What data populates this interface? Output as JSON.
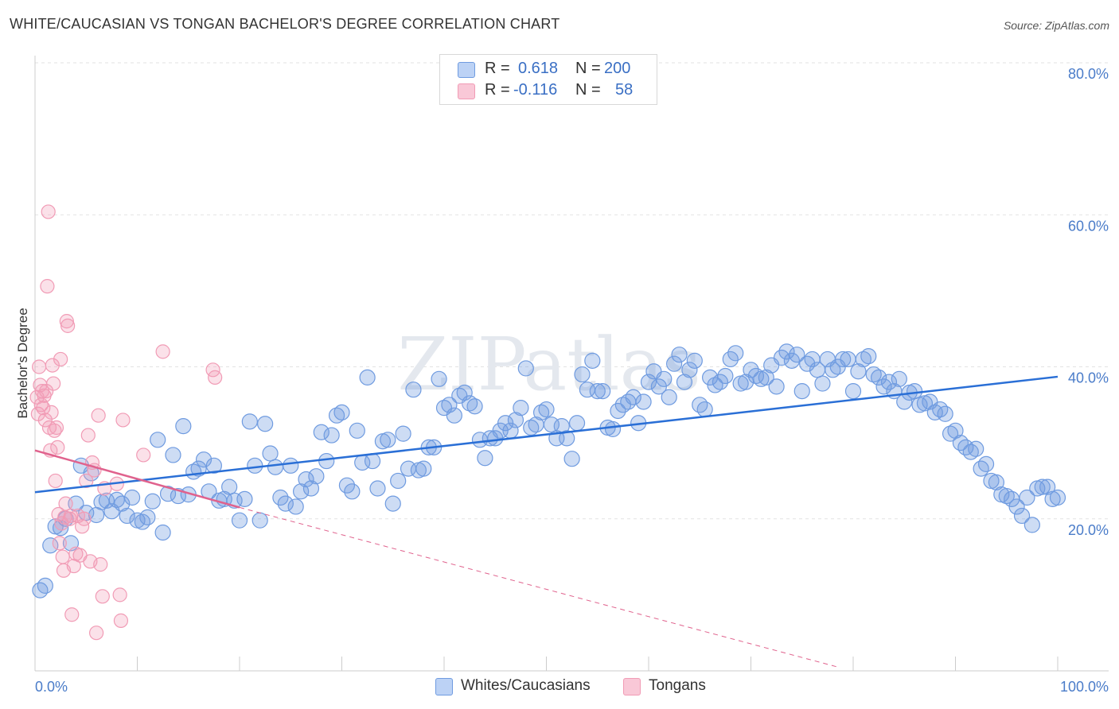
{
  "title": "WHITE/CAUCASIAN VS TONGAN BACHELOR'S DEGREE CORRELATION CHART",
  "source": "Source: ZipAtlas.com",
  "watermark": "ZIPatlas",
  "legend_stats": [
    {
      "r_label": "R =",
      "r_value": "0.618",
      "n_label": "N =",
      "n_value": "200"
    },
    {
      "r_label": "R =",
      "r_value": "-0.116",
      "n_label": "N =",
      "n_value": "58"
    }
  ],
  "bottom_legend": [
    "Whites/Caucasians",
    "Tongans"
  ],
  "colors": {
    "blue": "#6f9be0",
    "blue_line": "#2a6fd6",
    "pink": "#f19bb5",
    "pink_line": "#e0628d",
    "axis_text": "#4a7cc9"
  },
  "chart_data": {
    "type": "scatter",
    "title": "WHITE/CAUCASIAN VS TONGAN BACHELOR'S DEGREE CORRELATION CHART",
    "xlabel": "",
    "ylabel": "Bachelor's Degree",
    "xlim": [
      0,
      100
    ],
    "ylim": [
      0,
      80
    ],
    "x_tick_labels": [
      "0.0%",
      "100.0%"
    ],
    "y_tick_labels": [
      "20.0%",
      "40.0%",
      "60.0%",
      "80.0%"
    ],
    "y_ticks": [
      20,
      40,
      60,
      80
    ],
    "grid": true,
    "series": [
      {
        "name": "Whites/Caucasians",
        "color": "#6f9be0",
        "r": 0.618,
        "n": 200,
        "trend": {
          "x0": 0,
          "y0": 23.5,
          "x1": 100,
          "y1": 38.7
        },
        "points": [
          [
            0.5,
            10.6
          ],
          [
            1,
            11.2
          ],
          [
            1.5,
            16.5
          ],
          [
            2,
            19.0
          ],
          [
            2.5,
            18.8
          ],
          [
            3,
            20.0
          ],
          [
            3.5,
            16.8
          ],
          [
            4,
            22.0
          ],
          [
            4.5,
            27.0
          ],
          [
            5,
            20.8
          ],
          [
            5.5,
            26.0
          ],
          [
            6,
            20.5
          ],
          [
            6.5,
            22.2
          ],
          [
            7,
            22.4
          ],
          [
            7.5,
            21.0
          ],
          [
            8,
            22.5
          ],
          [
            8.5,
            22.0
          ],
          [
            9,
            20.4
          ],
          [
            9.5,
            22.8
          ],
          [
            10,
            19.8
          ],
          [
            10.5,
            19.6
          ],
          [
            11,
            20.2
          ],
          [
            11.5,
            22.3
          ],
          [
            12,
            30.4
          ],
          [
            12.5,
            18.2
          ],
          [
            13,
            23.3
          ],
          [
            13.5,
            28.4
          ],
          [
            14,
            23.0
          ],
          [
            14.5,
            32.2
          ],
          [
            15,
            23.2
          ],
          [
            15.5,
            26.2
          ],
          [
            16,
            26.6
          ],
          [
            16.5,
            27.8
          ],
          [
            17,
            23.6
          ],
          [
            17.5,
            27.0
          ],
          [
            18,
            22.4
          ],
          [
            18.5,
            22.6
          ],
          [
            19,
            24.2
          ],
          [
            19.5,
            22.4
          ],
          [
            20,
            19.8
          ],
          [
            20.5,
            22.6
          ],
          [
            21,
            32.8
          ],
          [
            21.5,
            27.0
          ],
          [
            22,
            19.8
          ],
          [
            22.5,
            32.5
          ],
          [
            23,
            28.6
          ],
          [
            23.5,
            26.8
          ],
          [
            24,
            22.8
          ],
          [
            24.5,
            22.0
          ],
          [
            25,
            27.0
          ],
          [
            25.5,
            21.6
          ],
          [
            26,
            23.6
          ],
          [
            26.5,
            25.2
          ],
          [
            27,
            24.0
          ],
          [
            27.5,
            25.6
          ],
          [
            28,
            31.4
          ],
          [
            28.5,
            27.6
          ],
          [
            29,
            31.0
          ],
          [
            29.5,
            33.6
          ],
          [
            30,
            34.0
          ],
          [
            30.5,
            24.4
          ],
          [
            31,
            23.6
          ],
          [
            31.5,
            31.6
          ],
          [
            32,
            27.4
          ],
          [
            32.5,
            38.6
          ],
          [
            33,
            27.6
          ],
          [
            33.5,
            24.0
          ],
          [
            34,
            30.2
          ],
          [
            34.5,
            30.4
          ],
          [
            35,
            22.0
          ],
          [
            35.5,
            25.0
          ],
          [
            36,
            31.2
          ],
          [
            36.5,
            26.6
          ],
          [
            37,
            37.0
          ],
          [
            37.5,
            26.4
          ],
          [
            38,
            26.6
          ],
          [
            38.5,
            29.4
          ],
          [
            39,
            29.4
          ],
          [
            39.5,
            38.4
          ],
          [
            40,
            34.6
          ],
          [
            40.5,
            35.0
          ],
          [
            41,
            33.6
          ],
          [
            41.5,
            36.2
          ],
          [
            42,
            36.6
          ],
          [
            42.5,
            35.2
          ],
          [
            43,
            34.8
          ],
          [
            43.5,
            30.4
          ],
          [
            44,
            28.0
          ],
          [
            44.5,
            30.6
          ],
          [
            45,
            30.6
          ],
          [
            45.5,
            31.6
          ],
          [
            46,
            32.6
          ],
          [
            46.5,
            31.6
          ],
          [
            47,
            33.0
          ],
          [
            47.5,
            34.6
          ],
          [
            48,
            39.8
          ],
          [
            48.5,
            32.0
          ],
          [
            49,
            32.4
          ],
          [
            49.5,
            34.0
          ],
          [
            50,
            34.4
          ],
          [
            50.5,
            32.4
          ],
          [
            51,
            30.6
          ],
          [
            51.5,
            32.2
          ],
          [
            52,
            30.6
          ],
          [
            52.5,
            27.9
          ],
          [
            53,
            32.6
          ],
          [
            53.5,
            39.0
          ],
          [
            54,
            37.0
          ],
          [
            54.5,
            40.8
          ],
          [
            55,
            36.8
          ],
          [
            55.5,
            36.8
          ],
          [
            56,
            32.0
          ],
          [
            56.5,
            31.8
          ],
          [
            57,
            34.2
          ],
          [
            57.5,
            35.0
          ],
          [
            58,
            35.4
          ],
          [
            58.5,
            36.0
          ],
          [
            59,
            32.6
          ],
          [
            59.5,
            35.4
          ],
          [
            60,
            38.0
          ],
          [
            60.5,
            39.4
          ],
          [
            61,
            37.4
          ],
          [
            61.5,
            38.4
          ],
          [
            62,
            36.0
          ],
          [
            62.5,
            40.4
          ],
          [
            63,
            41.6
          ],
          [
            63.5,
            38.0
          ],
          [
            64,
            39.6
          ],
          [
            64.5,
            40.8
          ],
          [
            65,
            35.0
          ],
          [
            65.5,
            34.4
          ],
          [
            66,
            38.6
          ],
          [
            66.5,
            37.6
          ],
          [
            67,
            38.0
          ],
          [
            67.5,
            38.8
          ],
          [
            68,
            41.0
          ],
          [
            68.5,
            41.8
          ],
          [
            69,
            37.8
          ],
          [
            69.5,
            38.0
          ],
          [
            70,
            39.6
          ],
          [
            70.5,
            38.8
          ],
          [
            71,
            38.4
          ],
          [
            71.5,
            38.6
          ],
          [
            72,
            40.2
          ],
          [
            72.5,
            37.4
          ],
          [
            73,
            41.2
          ],
          [
            73.5,
            42.0
          ],
          [
            74,
            40.8
          ],
          [
            74.5,
            41.6
          ],
          [
            75,
            36.8
          ],
          [
            75.5,
            40.4
          ],
          [
            76,
            41.0
          ],
          [
            76.5,
            39.6
          ],
          [
            77,
            37.8
          ],
          [
            77.5,
            41.0
          ],
          [
            78,
            39.6
          ],
          [
            78.5,
            40.0
          ],
          [
            79,
            41.0
          ],
          [
            79.5,
            41.0
          ],
          [
            80,
            36.8
          ],
          [
            80.5,
            39.4
          ],
          [
            81,
            41.0
          ],
          [
            81.5,
            41.4
          ],
          [
            82,
            39.0
          ],
          [
            82.5,
            38.6
          ],
          [
            83,
            37.4
          ],
          [
            83.5,
            38.0
          ],
          [
            84,
            36.8
          ],
          [
            84.5,
            38.4
          ],
          [
            85,
            35.4
          ],
          [
            85.5,
            36.6
          ],
          [
            86,
            36.8
          ],
          [
            86.5,
            35.0
          ],
          [
            87,
            35.2
          ],
          [
            87.5,
            35.4
          ],
          [
            88,
            34.0
          ],
          [
            88.5,
            34.4
          ],
          [
            89,
            33.8
          ],
          [
            89.5,
            31.2
          ],
          [
            90,
            31.6
          ],
          [
            90.5,
            30.0
          ],
          [
            91,
            29.4
          ],
          [
            91.5,
            28.8
          ],
          [
            92,
            29.2
          ],
          [
            92.5,
            26.6
          ],
          [
            93,
            27.2
          ],
          [
            93.5,
            25.0
          ],
          [
            94,
            24.8
          ],
          [
            94.5,
            23.2
          ],
          [
            95,
            23.0
          ],
          [
            95.5,
            22.6
          ],
          [
            96,
            21.6
          ],
          [
            96.5,
            20.4
          ],
          [
            97,
            22.8
          ],
          [
            97.5,
            19.2
          ],
          [
            98,
            24.0
          ],
          [
            98.5,
            24.2
          ],
          [
            99,
            24.2
          ],
          [
            99.5,
            22.6
          ],
          [
            100,
            22.8
          ]
        ]
      },
      {
        "name": "Tongans",
        "color": "#f19bb5",
        "r": -0.116,
        "n": 58,
        "trend": {
          "x0": 0,
          "y0": 29.0,
          "x1": 20,
          "y1": 21.5
        },
        "trend_dashed": {
          "x0": 20,
          "y0": 21.5,
          "x1": 78.5,
          "y1": 0.5
        },
        "points": [
          [
            0.2,
            36.0
          ],
          [
            0.3,
            33.8
          ],
          [
            0.4,
            40.0
          ],
          [
            0.5,
            37.6
          ],
          [
            0.6,
            35.0
          ],
          [
            0.7,
            36.8
          ],
          [
            0.8,
            34.6
          ],
          [
            0.9,
            36.2
          ],
          [
            1.0,
            33.0
          ],
          [
            1.1,
            36.8
          ],
          [
            1.2,
            50.6
          ],
          [
            1.3,
            60.4
          ],
          [
            1.4,
            32.0
          ],
          [
            1.5,
            29.0
          ],
          [
            1.6,
            34.0
          ],
          [
            1.7,
            40.2
          ],
          [
            1.8,
            37.8
          ],
          [
            1.9,
            31.6
          ],
          [
            2.0,
            25.0
          ],
          [
            2.1,
            32.0
          ],
          [
            2.2,
            29.4
          ],
          [
            2.3,
            20.6
          ],
          [
            2.4,
            16.8
          ],
          [
            2.5,
            41.0
          ],
          [
            2.6,
            19.4
          ],
          [
            2.7,
            15.0
          ],
          [
            2.8,
            13.2
          ],
          [
            2.9,
            20.2
          ],
          [
            3.0,
            22.0
          ],
          [
            3.1,
            46.0
          ],
          [
            3.2,
            45.4
          ],
          [
            3.4,
            20.0
          ],
          [
            3.5,
            20.4
          ],
          [
            3.6,
            7.4
          ],
          [
            3.8,
            13.8
          ],
          [
            4.0,
            15.4
          ],
          [
            4.2,
            20.4
          ],
          [
            4.4,
            15.2
          ],
          [
            4.6,
            19.0
          ],
          [
            4.8,
            20.0
          ],
          [
            5.0,
            25.0
          ],
          [
            5.2,
            31.0
          ],
          [
            5.4,
            14.4
          ],
          [
            5.6,
            27.4
          ],
          [
            5.8,
            26.4
          ],
          [
            6.0,
            5.0
          ],
          [
            6.2,
            33.6
          ],
          [
            6.4,
            14.0
          ],
          [
            6.6,
            9.8
          ],
          [
            6.8,
            24.0
          ],
          [
            8.0,
            24.6
          ],
          [
            8.3,
            10.0
          ],
          [
            8.4,
            6.6
          ],
          [
            8.6,
            33.0
          ],
          [
            10.6,
            28.4
          ],
          [
            12.5,
            42.0
          ],
          [
            17.4,
            39.6
          ],
          [
            17.6,
            38.6
          ]
        ]
      }
    ]
  }
}
